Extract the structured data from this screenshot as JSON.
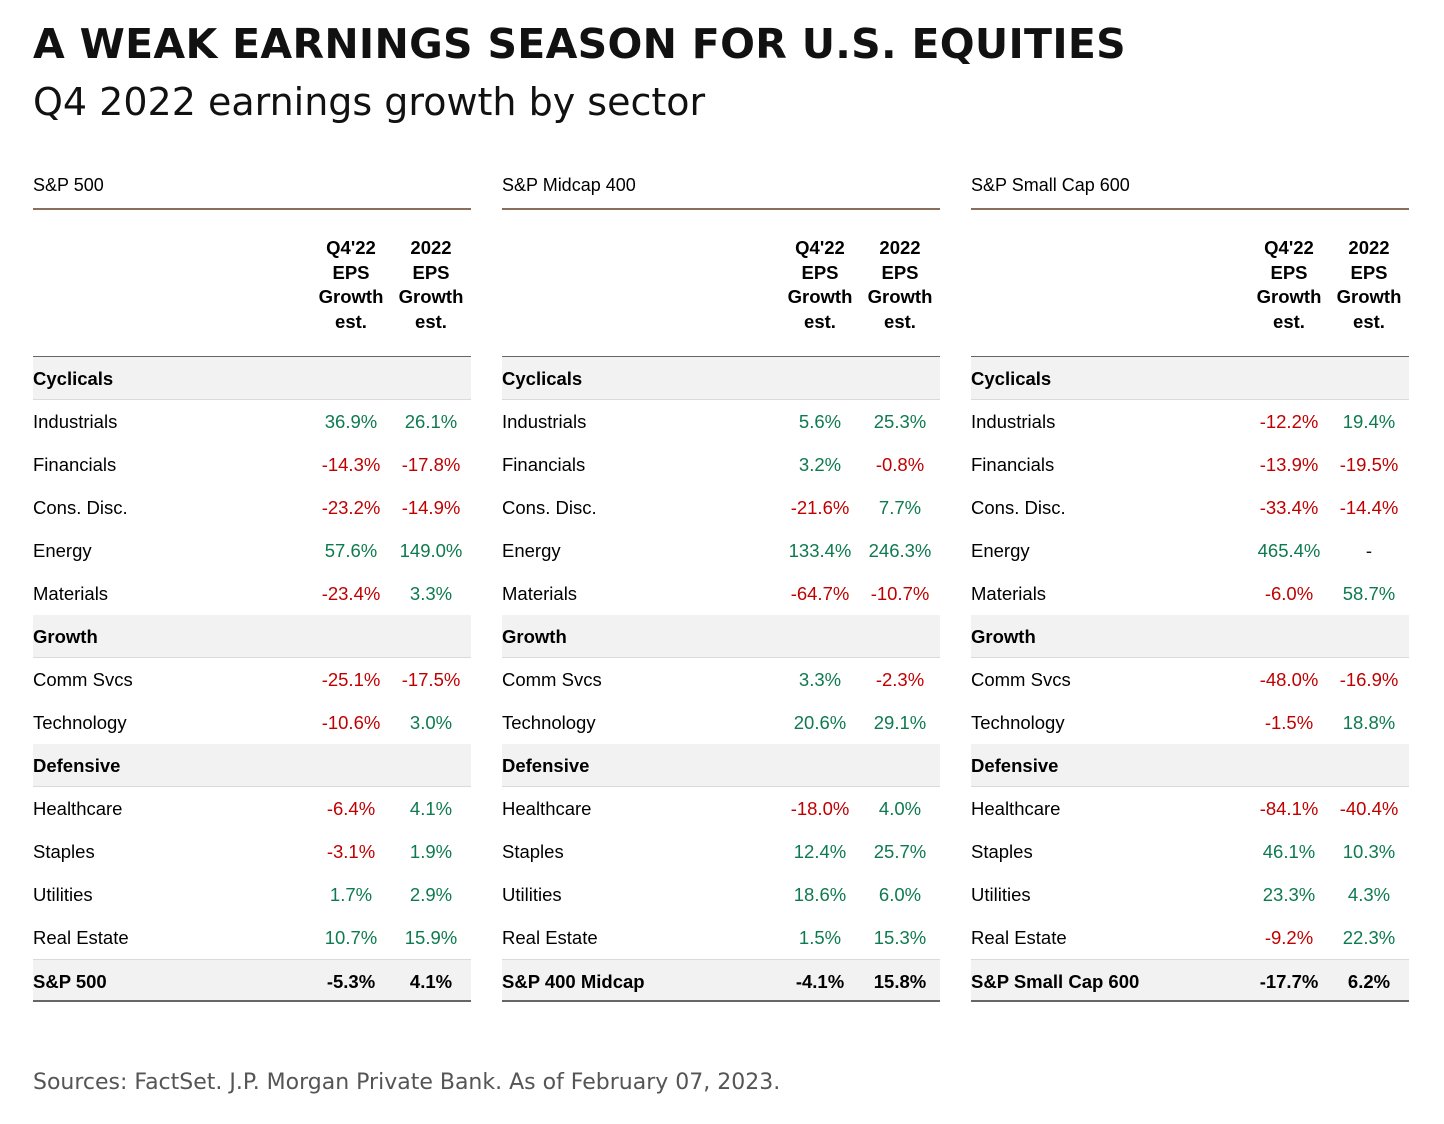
{
  "title": "A WEAK EARNINGS SEASON FOR U.S. EQUITIES",
  "subtitle": "Q4 2022 earnings growth by sector",
  "source": "Sources: FactSet. J.P. Morgan Private Bank. As of February 07, 2023.",
  "colors": {
    "positive": "#0e7a4f",
    "negative": "#c00000",
    "rule": "#8a6e5c",
    "band": "#f2f2f2"
  },
  "chart_data": {
    "type": "table",
    "columns": [
      [
        "Q4'22",
        "EPS",
        "Growth",
        "est."
      ],
      [
        "2022",
        "EPS",
        "Growth",
        "est."
      ]
    ],
    "tables": [
      {
        "name": "S&P 500",
        "rows": [
          {
            "label": "Cyclicals",
            "group": true
          },
          {
            "label": "Industrials",
            "values": [
              "36.9%",
              "26.1%"
            ]
          },
          {
            "label": "Financials",
            "values": [
              "-14.3%",
              "-17.8%"
            ]
          },
          {
            "label": "Cons. Disc.",
            "values": [
              "-23.2%",
              "-14.9%"
            ]
          },
          {
            "label": "Energy",
            "values": [
              "57.6%",
              "149.0%"
            ]
          },
          {
            "label": "Materials",
            "values": [
              "-23.4%",
              "3.3%"
            ]
          },
          {
            "label": "Growth",
            "group": true
          },
          {
            "label": "Comm Svcs",
            "values": [
              "-25.1%",
              "-17.5%"
            ]
          },
          {
            "label": "Technology",
            "values": [
              "-10.6%",
              "3.0%"
            ]
          },
          {
            "label": "Defensive",
            "group": true
          },
          {
            "label": "Healthcare",
            "values": [
              "-6.4%",
              "4.1%"
            ]
          },
          {
            "label": "Staples",
            "values": [
              "-3.1%",
              "1.9%"
            ]
          },
          {
            "label": "Utilities",
            "values": [
              "1.7%",
              "2.9%"
            ]
          },
          {
            "label": "Real Estate",
            "values": [
              "10.7%",
              "15.9%"
            ]
          },
          {
            "label": "S&P 500",
            "values": [
              "-5.3%",
              "4.1%"
            ],
            "total": true
          }
        ]
      },
      {
        "name": "S&P Midcap 400",
        "rows": [
          {
            "label": "Cyclicals",
            "group": true
          },
          {
            "label": "Industrials",
            "values": [
              "5.6%",
              "25.3%"
            ]
          },
          {
            "label": "Financials",
            "values": [
              "3.2%",
              "-0.8%"
            ]
          },
          {
            "label": "Cons. Disc.",
            "values": [
              "-21.6%",
              "7.7%"
            ]
          },
          {
            "label": "Energy",
            "values": [
              "133.4%",
              "246.3%"
            ]
          },
          {
            "label": "Materials",
            "values": [
              "-64.7%",
              "-10.7%"
            ]
          },
          {
            "label": "Growth",
            "group": true
          },
          {
            "label": "Comm Svcs",
            "values": [
              "3.3%",
              "-2.3%"
            ]
          },
          {
            "label": "Technology",
            "values": [
              "20.6%",
              "29.1%"
            ]
          },
          {
            "label": "Defensive",
            "group": true
          },
          {
            "label": "Healthcare",
            "values": [
              "-18.0%",
              "4.0%"
            ]
          },
          {
            "label": "Staples",
            "values": [
              "12.4%",
              "25.7%"
            ]
          },
          {
            "label": "Utilities",
            "values": [
              "18.6%",
              "6.0%"
            ]
          },
          {
            "label": "Real Estate",
            "values": [
              "1.5%",
              "15.3%"
            ]
          },
          {
            "label": "S&P 400 Midcap",
            "values": [
              "-4.1%",
              "15.8%"
            ],
            "total": true
          }
        ]
      },
      {
        "name": "S&P Small Cap 600",
        "rows": [
          {
            "label": "Cyclicals",
            "group": true
          },
          {
            "label": "Industrials",
            "values": [
              "-12.2%",
              "19.4%"
            ]
          },
          {
            "label": "Financials",
            "values": [
              "-13.9%",
              "-19.5%"
            ]
          },
          {
            "label": "Cons. Disc.",
            "values": [
              "-33.4%",
              "-14.4%"
            ]
          },
          {
            "label": "Energy",
            "values": [
              "465.4%",
              "-"
            ]
          },
          {
            "label": "Materials",
            "values": [
              "-6.0%",
              "58.7%"
            ]
          },
          {
            "label": "Growth",
            "group": true
          },
          {
            "label": "Comm Svcs",
            "values": [
              "-48.0%",
              "-16.9%"
            ]
          },
          {
            "label": "Technology",
            "values": [
              "-1.5%",
              "18.8%"
            ]
          },
          {
            "label": "Defensive",
            "group": true
          },
          {
            "label": "Healthcare",
            "values": [
              "-84.1%",
              "-40.4%"
            ]
          },
          {
            "label": "Staples",
            "values": [
              "46.1%",
              "10.3%"
            ]
          },
          {
            "label": "Utilities",
            "values": [
              "23.3%",
              "4.3%"
            ]
          },
          {
            "label": "Real Estate",
            "values": [
              "-9.2%",
              "22.3%"
            ]
          },
          {
            "label": "S&P Small Cap 600",
            "values": [
              "-17.7%",
              "6.2%"
            ],
            "total": true
          }
        ]
      }
    ]
  }
}
